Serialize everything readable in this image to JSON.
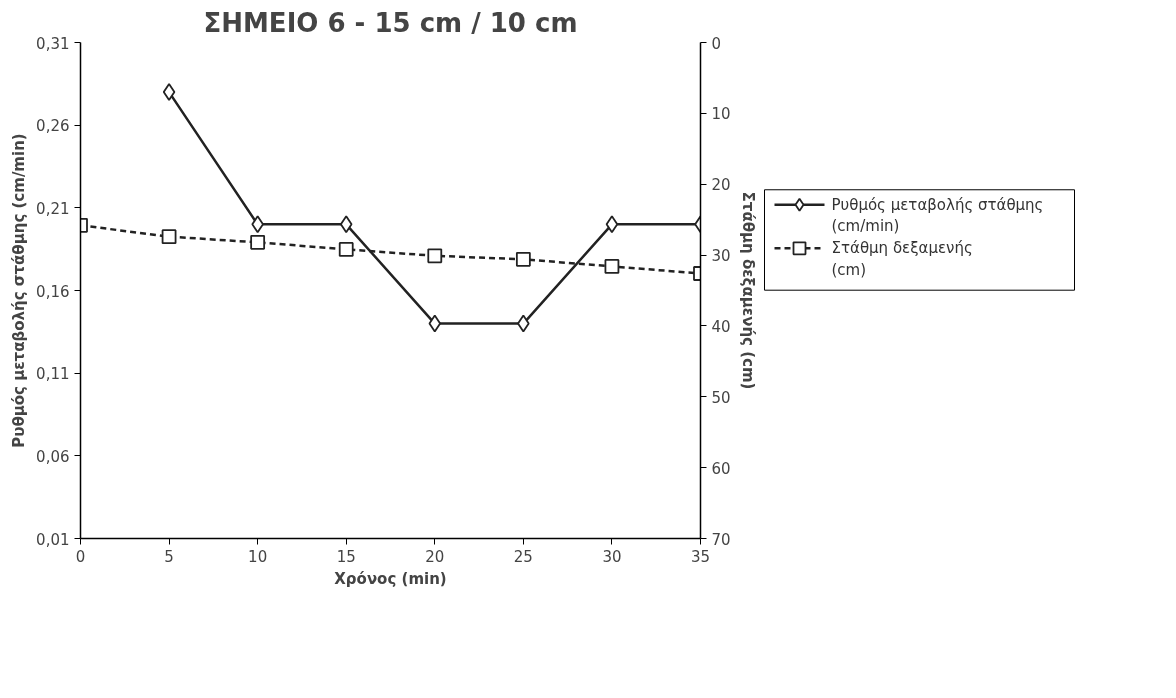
{
  "chart_data": {
    "type": "line",
    "title": "ΣΗΜΕΙΟ 6 - 15 cm / 10 cm",
    "xlabel": "Χρόνος (min)",
    "ylabel": "Ρυθμός μεταβολής στάθμης (cm/min)",
    "y2label": "Στάθμη δεξαμενής (cm)",
    "x": [
      0,
      5,
      10,
      15,
      20,
      25,
      30,
      35
    ],
    "series": [
      {
        "name": "Ρυθμός μεταβολής στάθμης  (cm/min)",
        "color": "#222222",
        "values": [
          null,
          0.28,
          0.2,
          0.2,
          0.14,
          0.14,
          0.2,
          0.2
        ],
        "marker": "diamond",
        "line_style": "solid"
      },
      {
        "name": "Στάθμη δεξαμενής (cm)",
        "color": "#222222",
        "values": [
          25.8,
          27.4,
          28.2,
          29.2,
          30.1,
          30.6,
          31.6,
          32.6
        ],
        "marker": "square",
        "line_style": "dashed",
        "axis": "y2"
      }
    ],
    "xlim": [
      0,
      35
    ],
    "xticks": [
      0,
      5,
      10,
      15,
      20,
      25,
      30,
      35
    ],
    "ylim": [
      0.01,
      0.31
    ],
    "yticks": [
      {
        "value": 0.01,
        "label": "0,01"
      },
      {
        "value": 0.06,
        "label": "0,06"
      },
      {
        "value": 0.11,
        "label": "0,11"
      },
      {
        "value": 0.16,
        "label": "0,16"
      },
      {
        "value": 0.21,
        "label": "0,21"
      },
      {
        "value": 0.26,
        "label": "0,26"
      },
      {
        "value": 0.31,
        "label": "0,31"
      }
    ],
    "y2lim": [
      70,
      0
    ],
    "y2ticks": [
      0,
      10,
      20,
      30,
      40,
      50,
      60,
      70
    ],
    "grid": false,
    "legend": "right"
  }
}
